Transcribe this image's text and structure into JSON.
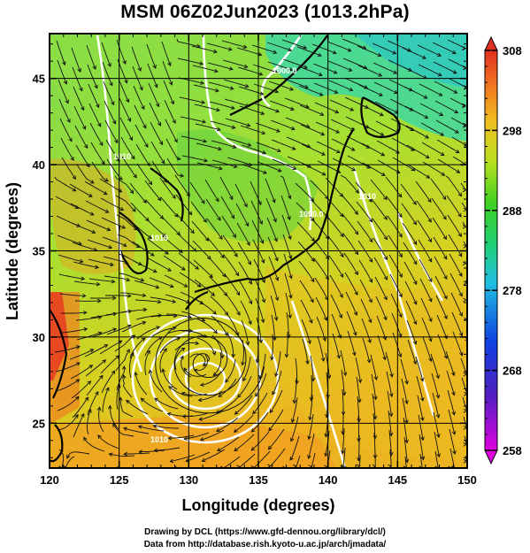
{
  "title": "MSM 06Z02Jun2023 (1013.2hPa)",
  "x_axis": {
    "label": "Longitude (degrees)",
    "ticks": [
      "120",
      "125",
      "130",
      "135",
      "140",
      "145",
      "150"
    ],
    "tick_values": [
      120,
      125,
      130,
      135,
      140,
      145,
      150
    ],
    "range": [
      120,
      150
    ]
  },
  "y_axis": {
    "label": "Latitude  (degrees)",
    "ticks": [
      "25",
      "30",
      "35",
      "40",
      "45"
    ],
    "tick_values": [
      25,
      30,
      35,
      40,
      45
    ],
    "range": [
      22.4,
      47.6
    ]
  },
  "colorbar": {
    "ticks": [
      "308",
      "298",
      "288",
      "278",
      "268",
      "258"
    ],
    "tick_values": [
      308,
      298,
      288,
      278,
      268,
      258
    ],
    "range": [
      258,
      308
    ]
  },
  "contour_labels": [
    "1000.0",
    "1000.0",
    "1010",
    "1010",
    "1010",
    "1010"
  ],
  "typhoon_center": {
    "lon": 131.2,
    "lat": 28.6
  },
  "credits": {
    "line1": "Drawing by DCL (https://www.gfd-dennou.org/library/dcl/)",
    "line2": "Data from http://database.rish.kyoto-u.ac.jp/arch/jmadata/"
  }
}
